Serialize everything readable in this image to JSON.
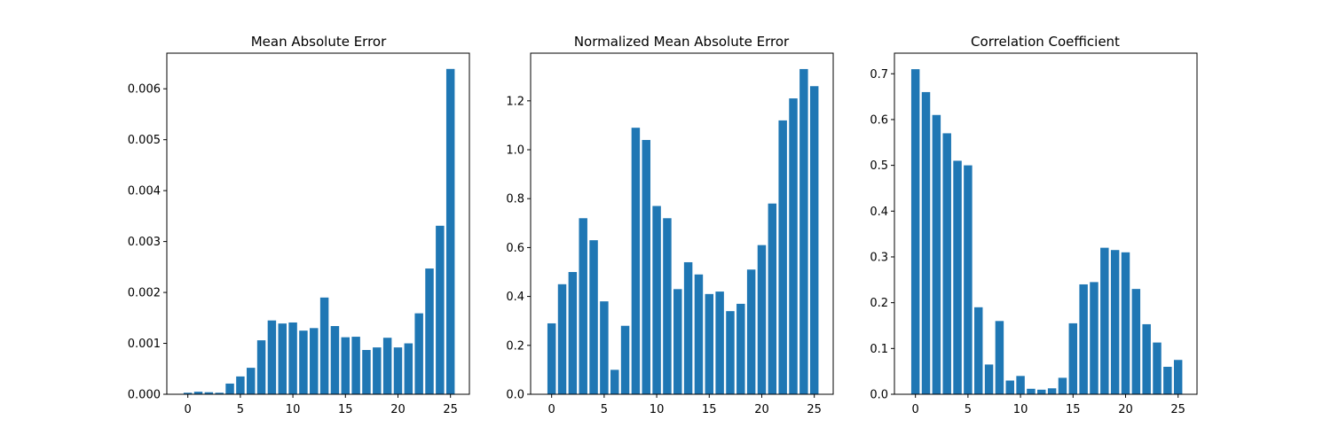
{
  "chart_data": [
    {
      "type": "bar",
      "title": "Mean Absolute Error",
      "xlabel": "",
      "ylabel": "",
      "x": [
        0,
        1,
        2,
        3,
        4,
        5,
        6,
        7,
        8,
        9,
        10,
        11,
        12,
        13,
        14,
        15,
        16,
        17,
        18,
        19,
        20,
        21,
        22,
        23,
        24,
        25
      ],
      "values": [
        3e-05,
        5e-05,
        4e-05,
        3e-05,
        0.00021,
        0.00035,
        0.00052,
        0.00106,
        0.00145,
        0.00139,
        0.00141,
        0.00125,
        0.0013,
        0.0019,
        0.00134,
        0.00112,
        0.00113,
        0.00087,
        0.00092,
        0.00111,
        0.00092,
        0.001,
        0.00159,
        0.00247,
        0.00331,
        0.00639
      ],
      "xlim": [
        -2.0,
        26.8
      ],
      "ylim": [
        0,
        0.0067
      ],
      "xticks": [
        0,
        5,
        10,
        15,
        20,
        25
      ],
      "xtick_labels": [
        "0",
        "5",
        "10",
        "15",
        "20",
        "25"
      ],
      "yticks": [
        0,
        0.001,
        0.002,
        0.003,
        0.004,
        0.005,
        0.006
      ],
      "ytick_labels": [
        "0.000",
        "0.001",
        "0.002",
        "0.003",
        "0.004",
        "0.005",
        "0.006"
      ],
      "color": "#1f77b4",
      "grid": false,
      "legend": "none"
    },
    {
      "type": "bar",
      "title": "Normalized Mean Absolute Error",
      "xlabel": "",
      "ylabel": "",
      "x": [
        0,
        1,
        2,
        3,
        4,
        5,
        6,
        7,
        8,
        9,
        10,
        11,
        12,
        13,
        14,
        15,
        16,
        17,
        18,
        19,
        20,
        21,
        22,
        23,
        24,
        25
      ],
      "values": [
        0.29,
        0.45,
        0.5,
        0.72,
        0.63,
        0.38,
        0.1,
        0.28,
        1.09,
        1.04,
        0.77,
        0.72,
        0.43,
        0.54,
        0.49,
        0.41,
        0.42,
        0.34,
        0.37,
        0.51,
        0.61,
        0.78,
        1.12,
        1.21,
        1.33,
        1.26
      ],
      "xlim": [
        -2.0,
        26.8
      ],
      "ylim": [
        0,
        1.395
      ],
      "xticks": [
        0,
        5,
        10,
        15,
        20,
        25
      ],
      "xtick_labels": [
        "0",
        "5",
        "10",
        "15",
        "20",
        "25"
      ],
      "yticks": [
        0,
        0.2,
        0.4,
        0.6,
        0.8,
        1.0,
        1.2
      ],
      "ytick_labels": [
        "0.0",
        "0.2",
        "0.4",
        "0.6",
        "0.8",
        "1.0",
        "1.2"
      ],
      "color": "#1f77b4",
      "grid": false,
      "legend": "none"
    },
    {
      "type": "bar",
      "title": "Correlation Coefficient",
      "xlabel": "",
      "ylabel": "",
      "x": [
        0,
        1,
        2,
        3,
        4,
        5,
        6,
        7,
        8,
        9,
        10,
        11,
        12,
        13,
        14,
        15,
        16,
        17,
        18,
        19,
        20,
        21,
        22,
        23,
        24,
        25
      ],
      "values": [
        0.71,
        0.66,
        0.61,
        0.57,
        0.51,
        0.5,
        0.19,
        0.065,
        0.16,
        0.03,
        0.04,
        0.012,
        0.01,
        0.013,
        0.036,
        0.155,
        0.24,
        0.245,
        0.32,
        0.315,
        0.31,
        0.23,
        0.153,
        0.113,
        0.06,
        0.075
      ],
      "xlim": [
        -2.0,
        26.8
      ],
      "ylim": [
        0,
        0.745
      ],
      "xticks": [
        0,
        5,
        10,
        15,
        20,
        25
      ],
      "xtick_labels": [
        "0",
        "5",
        "10",
        "15",
        "20",
        "25"
      ],
      "yticks": [
        0,
        0.1,
        0.2,
        0.3,
        0.4,
        0.5,
        0.6,
        0.7
      ],
      "ytick_labels": [
        "0.0",
        "0.1",
        "0.2",
        "0.3",
        "0.4",
        "0.5",
        "0.6",
        "0.7"
      ],
      "color": "#1f77b4",
      "grid": false,
      "legend": "none"
    }
  ]
}
